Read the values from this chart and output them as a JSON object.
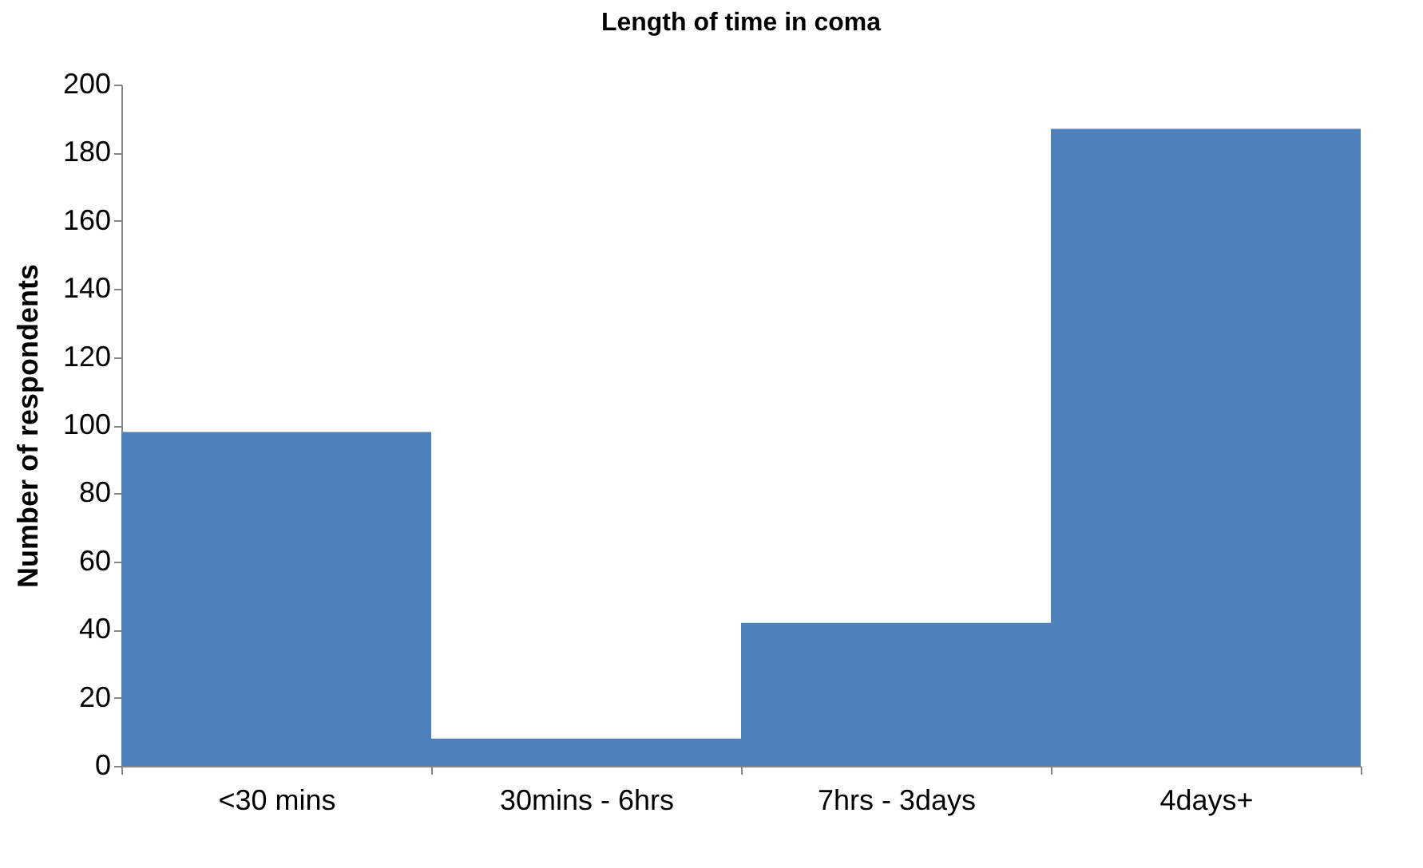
{
  "chart_data": {
    "type": "bar",
    "title": "Length of time in coma",
    "ylabel": "Number of respondents",
    "categories": [
      "<30 mins",
      "30mins - 6hrs",
      "7hrs - 3days",
      "4days+"
    ],
    "values": [
      98,
      8,
      42,
      187
    ],
    "color": "#4f81bd",
    "ylim": [
      0,
      200
    ],
    "yticks": [
      0,
      20,
      40,
      60,
      80,
      100,
      120,
      140,
      160,
      180,
      200
    ],
    "grid": false
  }
}
